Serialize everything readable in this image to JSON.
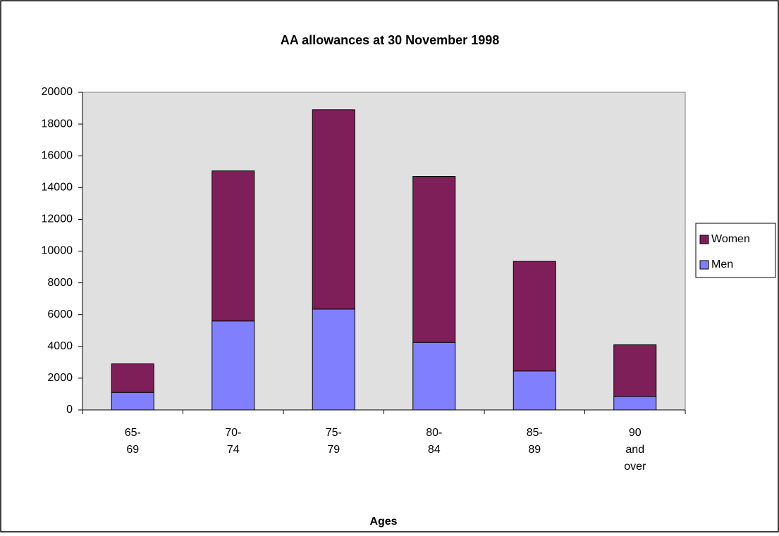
{
  "chart_data": {
    "type": "stacked_bar",
    "title": "AA allowances at 30 November 1998",
    "x_label": "Ages",
    "categories": [
      [
        "65-",
        "69"
      ],
      [
        "70-",
        "74"
      ],
      [
        "75-",
        "79"
      ],
      [
        "80-",
        "84"
      ],
      [
        "85-",
        "89"
      ],
      [
        "90",
        "and",
        "over"
      ]
    ],
    "series": [
      {
        "name": "Men",
        "color": "#8080ff",
        "values": [
          1100,
          5600,
          6350,
          4250,
          2450,
          850
        ]
      },
      {
        "name": "Women",
        "color": "#7f1f5a",
        "values": [
          1800,
          9450,
          12550,
          10450,
          6900,
          3250
        ]
      }
    ],
    "ylim": [
      0,
      20000
    ],
    "yticks": [
      0,
      2000,
      4000,
      6000,
      8000,
      10000,
      12000,
      14000,
      16000,
      18000,
      20000
    ],
    "legend": "right"
  }
}
